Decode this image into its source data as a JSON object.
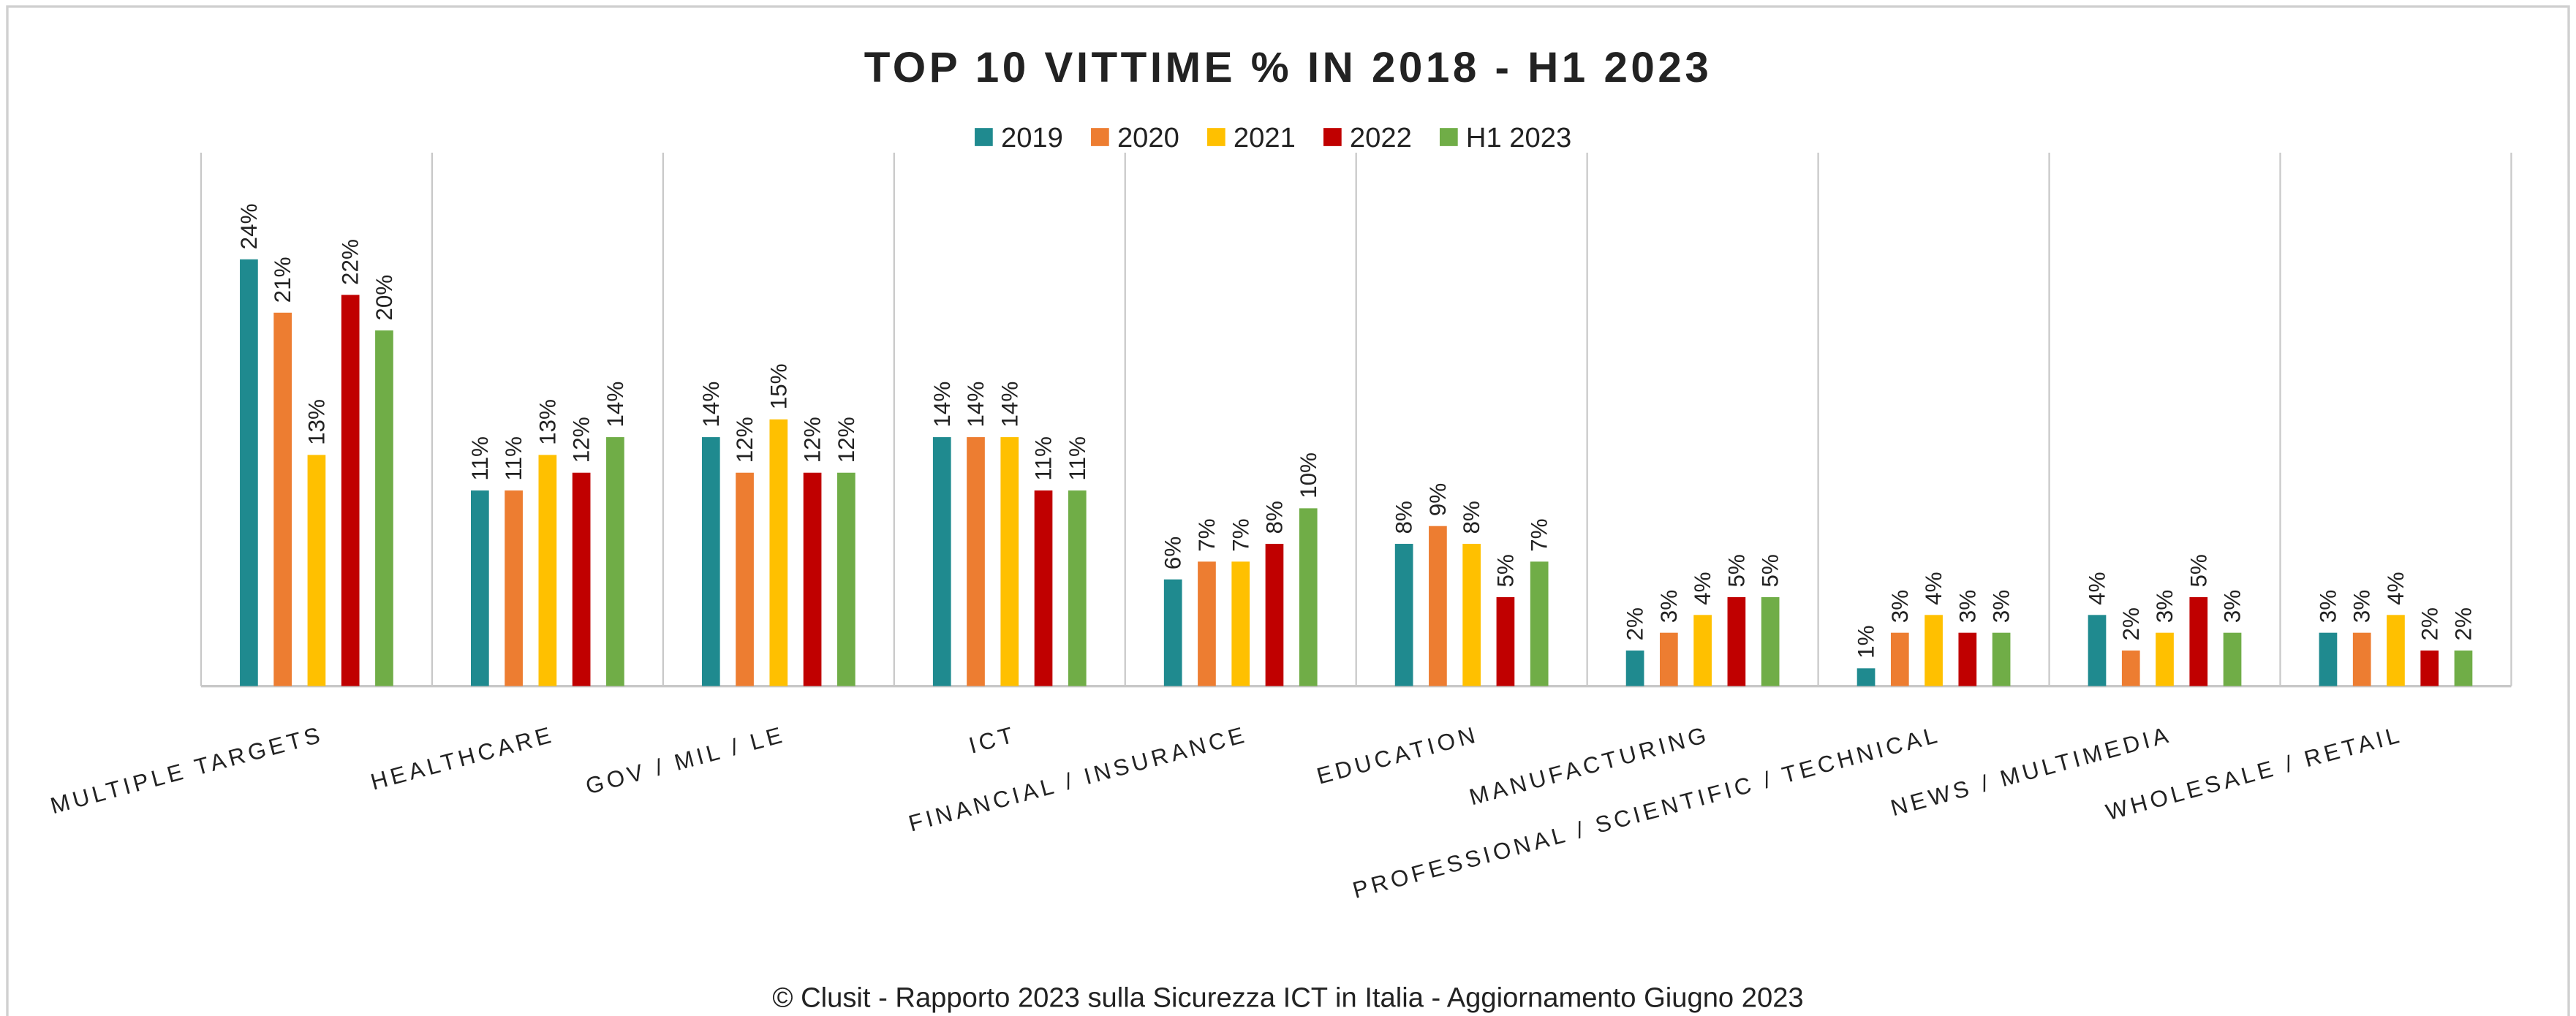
{
  "chart_data": {
    "type": "bar",
    "title": "TOP 10 VITTIME % IN 2018 - H1 2023",
    "footer": "© Clusit - Rapporto 2023 sulla Sicurezza ICT in Italia - Aggiornamento Giugno 2023",
    "categories": [
      "MULTIPLE TARGETS",
      "HEALTHCARE",
      "GOV / MIL / LE",
      "ICT",
      "FINANCIAL / INSURANCE",
      "EDUCATION",
      "MANUFACTURING",
      "PROFESSIONAL / SCIENTIFIC / TECHNICAL",
      "NEWS / MULTIMEDIA",
      "WHOLESALE / RETAIL"
    ],
    "series": [
      {
        "name": "2019",
        "color": "#1f8a8f",
        "values": [
          24,
          11,
          14,
          14,
          6,
          8,
          2,
          1,
          4,
          3
        ],
        "value_labels": [
          "24%",
          "11%",
          "14%",
          "14%",
          "6%",
          "8%",
          "2%",
          "1%",
          "4%",
          "3%"
        ]
      },
      {
        "name": "2020",
        "color": "#ed7d31",
        "values": [
          21,
          11,
          12,
          14,
          7,
          9,
          3,
          3,
          2,
          3
        ],
        "value_labels": [
          "21%",
          "11%",
          "12%",
          "14%",
          "7%",
          "9%",
          "3%",
          "3%",
          "2%",
          "3%"
        ]
      },
      {
        "name": "2021",
        "color": "#ffc000",
        "values": [
          13,
          13,
          15,
          14,
          7,
          8,
          4,
          4,
          3,
          4
        ],
        "value_labels": [
          "13%",
          "13%",
          "15%",
          "14%",
          "7%",
          "8%",
          "4%",
          "4%",
          "3%",
          "4%"
        ]
      },
      {
        "name": "2022",
        "color": "#c00000",
        "values": [
          22,
          12,
          12,
          11,
          8,
          5,
          5,
          3,
          5,
          2
        ],
        "value_labels": [
          "22%",
          "12%",
          "12%",
          "11%",
          "8%",
          "5%",
          "5%",
          "3%",
          "5%",
          "2%"
        ]
      },
      {
        "name": "H1 2023",
        "color": "#70ad47",
        "values": [
          20,
          14,
          12,
          11,
          10,
          7,
          5,
          3,
          3,
          2
        ],
        "value_labels": [
          "20%",
          "14%",
          "12%",
          "11%",
          "10%",
          "7%",
          "5%",
          "3%",
          "3%",
          "2%"
        ]
      }
    ],
    "ylim": [
      0,
      30
    ],
    "legend": "top"
  }
}
